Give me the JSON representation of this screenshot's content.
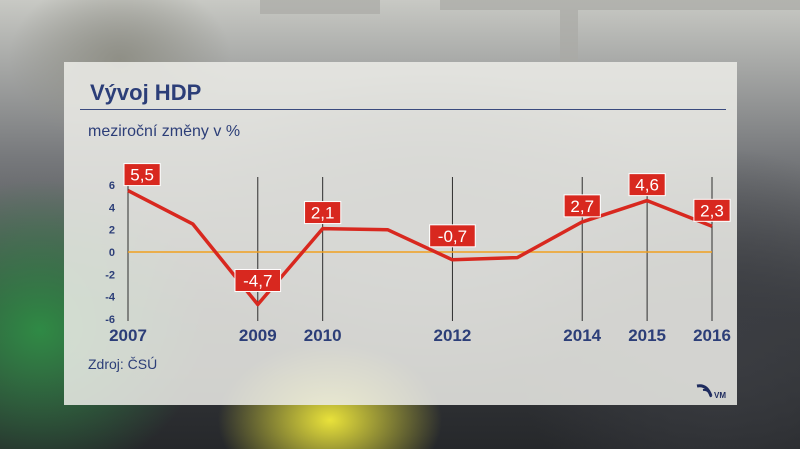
{
  "title": "Vývoj HDP",
  "subtitle": "meziroční změny v %",
  "source": "Zdroj: ČSÚ",
  "logo_text": "VM",
  "colors": {
    "series": "#d8281f",
    "zero_line": "#f0a020",
    "text": "#2c3e78",
    "label_bg": "#d8281f",
    "label_text": "#ffffff"
  },
  "chart_data": {
    "type": "line",
    "title": "Vývoj HDP",
    "subtitle": "meziroční změny v %",
    "x": [
      2007,
      2008,
      2009,
      2010,
      2011,
      2012,
      2013,
      2014,
      2015,
      2016
    ],
    "x_tick_labels": [
      "2007",
      "2009",
      "2010",
      "2012",
      "2014",
      "2015",
      "2016"
    ],
    "y_ticks": [
      6,
      4,
      2,
      0,
      -2,
      -4,
      -6
    ],
    "ylim": [
      -6,
      6
    ],
    "grid": "vertical lines at labeled years",
    "series": [
      {
        "values": [
          5.5,
          2.5,
          -4.7,
          2.1,
          2.0,
          -0.7,
          -0.5,
          2.7,
          4.6,
          2.3
        ]
      }
    ],
    "data_labels": [
      {
        "x": 2007,
        "text": "5,5"
      },
      {
        "x": 2009,
        "text": "-4,7"
      },
      {
        "x": 2010,
        "text": "2,1"
      },
      {
        "x": 2012,
        "text": "-0,7"
      },
      {
        "x": 2014,
        "text": "2,7"
      },
      {
        "x": 2015,
        "text": "4,6"
      },
      {
        "x": 2016,
        "text": "2,3"
      }
    ]
  }
}
